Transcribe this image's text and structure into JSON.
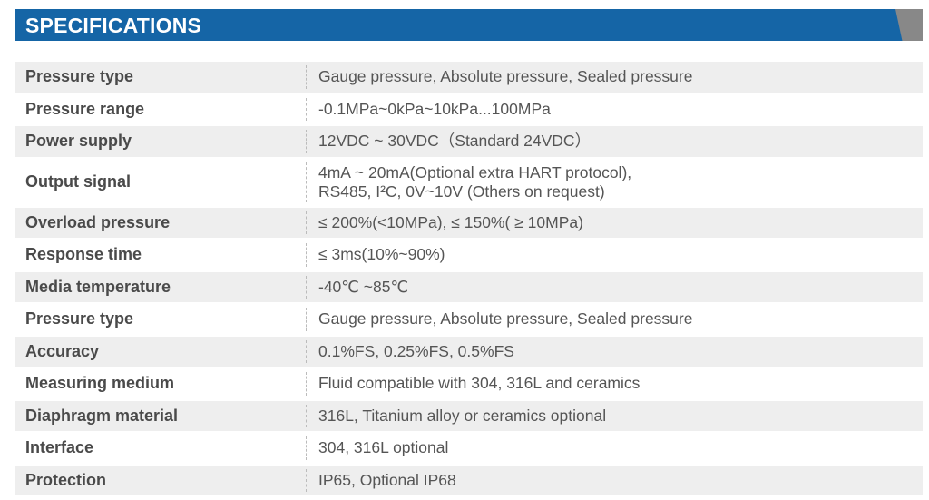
{
  "header": {
    "title": "SPECIFICATIONS",
    "color": "#1565a6",
    "accent_color": "#888888"
  },
  "rows": [
    {
      "label": "Pressure type",
      "value": [
        "Gauge pressure, Absolute pressure, Sealed pressure"
      ]
    },
    {
      "label": "Pressure range",
      "value": [
        "-0.1MPa~0kPa~10kPa...100MPa"
      ]
    },
    {
      "label": "Power supply",
      "value": [
        "12VDC ~ 30VDC（Standard 24VDC）"
      ]
    },
    {
      "label": "Output signal",
      "value": [
        "4mA ~ 20mA(Optional extra HART protocol),",
        "RS485, I²C, 0V~10V (Others on request)"
      ]
    },
    {
      "label": "Overload pressure",
      "value": [
        "≤ 200%(<10MPa), ≤ 150%( ≥ 10MPa)"
      ]
    },
    {
      "label": "Response time",
      "value": [
        "≤ 3ms(10%~90%)"
      ]
    },
    {
      "label": "Media temperature",
      "value": [
        "-40℃ ~85℃"
      ]
    },
    {
      "label": "Pressure type",
      "value": [
        "Gauge pressure, Absolute pressure, Sealed pressure"
      ]
    },
    {
      "label": "Accuracy",
      "value": [
        "0.1%FS, 0.25%FS, 0.5%FS"
      ]
    },
    {
      "label": "Measuring medium",
      "value": [
        "Fluid compatible with 304, 316L and ceramics"
      ]
    },
    {
      "label": "Diaphragm material",
      "value": [
        "316L, Titanium alloy or ceramics optional"
      ]
    },
    {
      "label": "Interface",
      "value": [
        "304, 316L optional"
      ]
    },
    {
      "label": "Protection",
      "value": [
        "IP65, Optional IP68"
      ]
    }
  ]
}
